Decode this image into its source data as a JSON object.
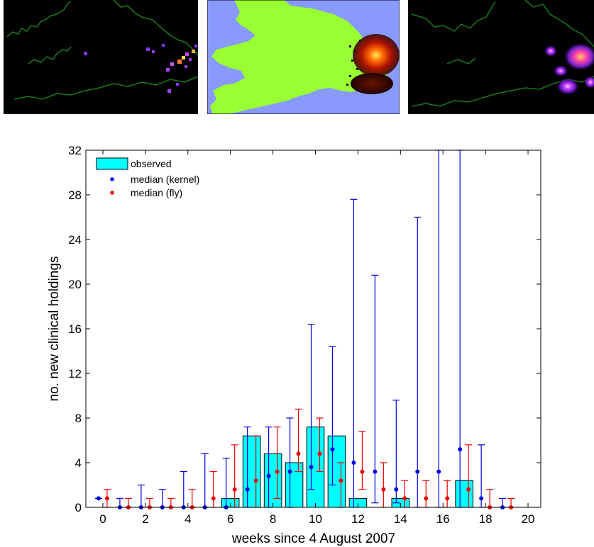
{
  "chart_data": {
    "type": "bar",
    "xlabel": "weeks since 4 August 2007",
    "ylabel": "no. new clinical holdings",
    "xlim": [
      -0.8,
      20.6
    ],
    "ylim": [
      0,
      32
    ],
    "x_ticks": [
      0,
      2,
      4,
      6,
      8,
      10,
      12,
      14,
      16,
      18,
      20
    ],
    "y_ticks": [
      0,
      4,
      8,
      12,
      16,
      20,
      24,
      28,
      32
    ],
    "legend": {
      "placement": "top-left",
      "entries": [
        "observed",
        "median (kernel)",
        "median (fly)"
      ]
    },
    "colors": {
      "observed": "#00ffff",
      "kernel": "#0000dd",
      "fly": "#ee0000"
    },
    "series": [
      {
        "name": "observed",
        "type": "bar",
        "x": [
          6,
          7,
          8,
          9,
          10,
          11,
          12,
          14,
          17
        ],
        "values": [
          0.8,
          6.4,
          4.8,
          4.0,
          7.2,
          6.4,
          0.8,
          0.8,
          2.4
        ]
      },
      {
        "name": "median (kernel)",
        "type": "errorbar",
        "x": [
          -0.2,
          0.8,
          1.8,
          2.8,
          3.8,
          4.8,
          5.8,
          6.8,
          7.8,
          8.8,
          9.8,
          10.8,
          11.8,
          12.8,
          13.8,
          14.8,
          15.8,
          16.8,
          17.8,
          18.8
        ],
        "median": [
          0.8,
          0,
          0,
          0,
          0,
          0,
          0,
          1.6,
          2.8,
          3.2,
          3.6,
          5.2,
          4.0,
          3.2,
          1.6,
          3.2,
          3.2,
          5.2,
          0.8,
          0
        ],
        "lower": [
          0.8,
          0,
          0,
          0,
          0,
          0,
          0,
          0,
          0,
          0,
          1.6,
          2.0,
          0,
          0.4,
          0.4,
          0,
          0,
          0,
          0,
          0
        ],
        "upper": [
          0.8,
          0.8,
          2.0,
          1.6,
          3.2,
          4.8,
          4.4,
          7.2,
          7.2,
          8.0,
          16.4,
          14.4,
          27.6,
          20.8,
          9.6,
          26.0,
          32,
          32,
          5.6,
          0.8
        ]
      },
      {
        "name": "median (fly)",
        "type": "errorbar",
        "x": [
          0.2,
          1.2,
          2.2,
          3.2,
          4.2,
          5.2,
          6.2,
          7.2,
          8.2,
          9.2,
          10.2,
          11.2,
          12.2,
          13.2,
          14.2,
          15.2,
          16.2,
          17.2,
          18.2,
          19.2
        ],
        "median": [
          0.8,
          0,
          0,
          0,
          0,
          0.8,
          1.6,
          2.4,
          3.2,
          4.8,
          4.8,
          2.4,
          3.2,
          1.6,
          0.8,
          0.8,
          0.8,
          1.6,
          0,
          0
        ],
        "lower": [
          0,
          0,
          0,
          0,
          0,
          0,
          0,
          0,
          0.8,
          3.2,
          3.2,
          0,
          1.6,
          0,
          0,
          0,
          0,
          0,
          0,
          0
        ],
        "upper": [
          1.6,
          0.8,
          0.8,
          0.8,
          1.6,
          3.2,
          5.6,
          6.4,
          7.2,
          8.8,
          8.0,
          4.0,
          6.8,
          4.0,
          2.4,
          2.4,
          2.4,
          5.6,
          1.6,
          0.8
        ]
      }
    ]
  },
  "maps": {
    "panels": [
      "observed-cases-map",
      "risk-area-map",
      "predicted-risk-map"
    ],
    "background": "#000000",
    "land_color": "#99ff33",
    "sea_color": "#8899ff",
    "coast_color": "#1a7a1a"
  }
}
